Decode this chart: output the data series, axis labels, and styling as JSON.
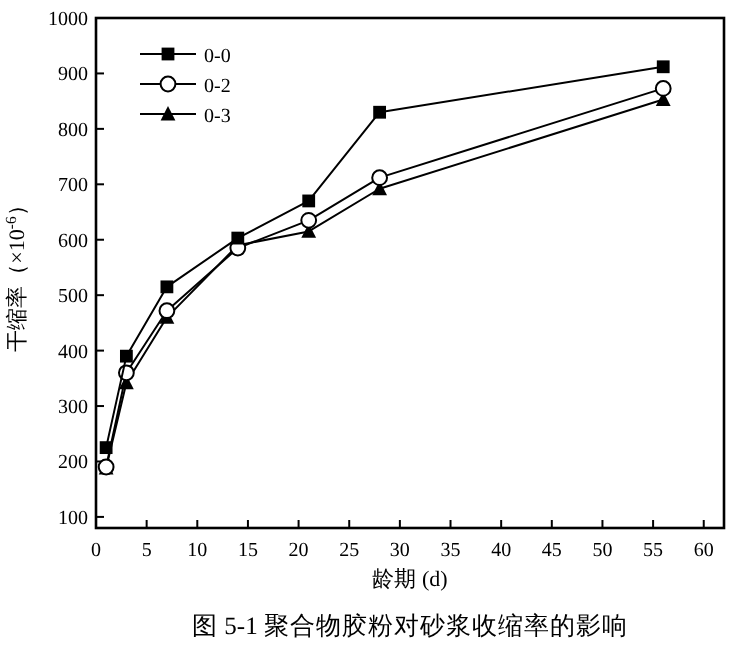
{
  "chart_data": {
    "type": "line",
    "title": "图 5-1  聚合物胶粉对砂浆收缩率的影响",
    "xlabel": "龄期 (d)",
    "ylabel": "干缩率（×10$^{-6}$）",
    "xlim": [
      0,
      62
    ],
    "xticks": [
      0,
      5,
      10,
      15,
      20,
      25,
      30,
      35,
      40,
      45,
      50,
      55,
      60
    ],
    "ylim": [
      80,
      1000
    ],
    "yticks": [
      100,
      200,
      300,
      400,
      500,
      600,
      700,
      800,
      900,
      1000
    ],
    "x": [
      1,
      3,
      7,
      14,
      21,
      28,
      56
    ],
    "legend": "top left",
    "grid": false,
    "series": [
      {
        "name": "0-0",
        "color": "#000000",
        "marker": "square",
        "values": [
          225,
          390,
          515,
          603,
          670,
          830,
          912
        ]
      },
      {
        "name": "0-2",
        "color": "#000000",
        "marker": "circle",
        "values": [
          190,
          360,
          472,
          585,
          635,
          712,
          873
        ]
      },
      {
        "name": "0-3",
        "color": "#000000",
        "marker": "triangle",
        "values": [
          188,
          342,
          460,
          590,
          615,
          692,
          853
        ]
      }
    ]
  }
}
